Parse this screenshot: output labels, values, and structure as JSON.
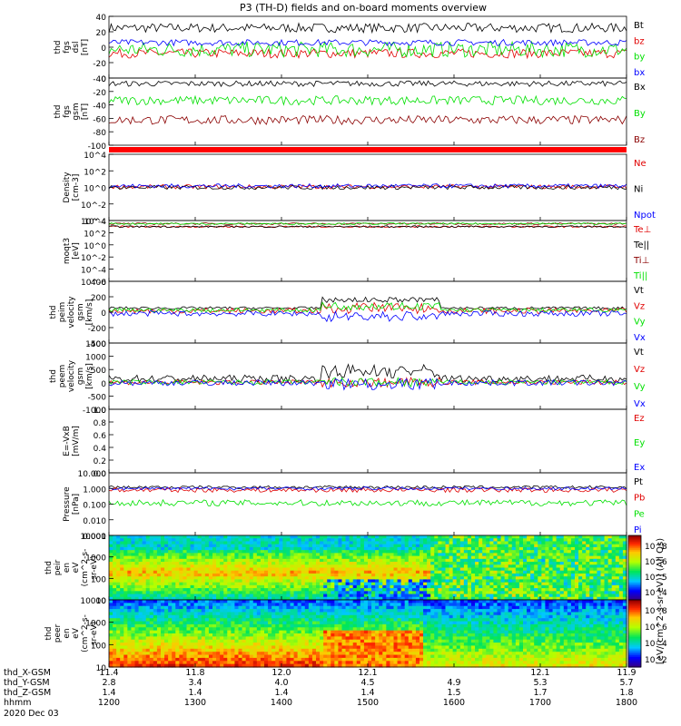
{
  "title": "P3 (TH-D) fields and on-board moments overview",
  "chart_data": {
    "type": "line",
    "title": "P3 (TH-D) fields and on-board moments overview",
    "panels": [
      {
        "id": "fgs_dsl",
        "ylabel": [
          "thd",
          "fgs",
          "dsl",
          "[nT]"
        ],
        "ylim": [
          -40,
          40
        ],
        "scale": "linear",
        "ticks": [
          "40",
          "20",
          "0",
          "-20",
          "-40"
        ],
        "series": [
          {
            "name": "Bt",
            "color": "#000000",
            "base": 25,
            "amp": 6
          },
          {
            "name": "bz",
            "color": "#e00000",
            "base": -8,
            "amp": 6
          },
          {
            "name": "by",
            "color": "#00e000",
            "base": -3,
            "amp": 10
          },
          {
            "name": "bx",
            "color": "#0000ff",
            "base": 6,
            "amp": 4
          }
        ]
      },
      {
        "id": "fgs_gsm",
        "ylabel": [
          "thd",
          "fgs",
          "gsm",
          "[nT]"
        ],
        "ylim": [
          -110,
          10
        ],
        "scale": "linear",
        "ticks": [
          "0",
          "-20",
          "-40",
          "-60",
          "-80",
          "-100"
        ],
        "series": [
          {
            "name": "Bx",
            "color": "#000000",
            "base": 0,
            "amp": 5
          },
          {
            "name": "By",
            "color": "#00e000",
            "base": -30,
            "amp": 8
          },
          {
            "name": "Bz",
            "color": "#8b0000",
            "base": -65,
            "amp": 8
          }
        ]
      },
      {
        "id": "density",
        "ylabel": [
          "Density",
          "[cm-3]"
        ],
        "ylim": [
          0.0001,
          10000
        ],
        "scale": "log",
        "ticks": [
          "10^4",
          "10^2",
          "10^0",
          "10^-2",
          "10^-4"
        ],
        "series": [
          {
            "name": "Ne",
            "color": "#e00000",
            "base": 1.2,
            "amp": 0.5
          },
          {
            "name": "Ni",
            "color": "#000000",
            "base": 1.0,
            "amp": 0.5
          },
          {
            "name": "Npot",
            "color": "#0000ff",
            "base": 1.5,
            "amp": 0.5
          }
        ]
      },
      {
        "id": "temp",
        "ylabel": [
          "moqt3",
          "[eV]"
        ],
        "ylim": [
          1e-06,
          10000
        ],
        "scale": "log",
        "ticks": [
          "10^4",
          "10^2",
          "10^0",
          "10^-2",
          "10^-4",
          "10^-6"
        ],
        "series": [
          {
            "name": "Te⊥",
            "color": "#e00000",
            "base": 1000,
            "amp": 0.3
          },
          {
            "name": "Te||",
            "color": "#000000",
            "base": 1000,
            "amp": 0.3
          },
          {
            "name": "Ti⊥",
            "color": "#8b0000",
            "base": 3000,
            "amp": 0.3
          },
          {
            "name": "Ti||",
            "color": "#00e000",
            "base": 3000,
            "amp": 0.3
          }
        ]
      },
      {
        "id": "peim_vel",
        "ylabel": [
          "thd",
          "peim",
          "velocity",
          "gsm",
          "[km/s]"
        ],
        "ylim": [
          -450,
          450
        ],
        "scale": "linear",
        "ticks": [
          "400",
          "200",
          "0",
          "-200",
          "-400"
        ],
        "series": [
          {
            "name": "Vt",
            "color": "#000000",
            "base": 60,
            "amp": 20
          },
          {
            "name": "Vz",
            "color": "#e00000",
            "base": 20,
            "amp": 40
          },
          {
            "name": "Vy",
            "color": "#00e000",
            "base": 30,
            "amp": 30
          },
          {
            "name": "Vx",
            "color": "#0000ff",
            "base": -20,
            "amp": 40
          }
        ]
      },
      {
        "id": "peem_vel",
        "ylabel": [
          "thd",
          "peem",
          "velocity",
          "gsm",
          "[km/s]"
        ],
        "ylim": [
          -1100,
          1600
        ],
        "scale": "linear",
        "ticks": [
          "1500",
          "1000",
          "500",
          "0",
          "-500",
          "-1000"
        ],
        "series": [
          {
            "name": "Vt",
            "color": "#000000",
            "base": 150,
            "amp": 150
          },
          {
            "name": "Vz",
            "color": "#e00000",
            "base": 0,
            "amp": 100
          },
          {
            "name": "Vy",
            "color": "#00e000",
            "base": 0,
            "amp": 100
          },
          {
            "name": "Vx",
            "color": "#0000ff",
            "base": -20,
            "amp": 120
          }
        ]
      },
      {
        "id": "efield",
        "ylabel": [
          "E=-VxB",
          "[mV/m]"
        ],
        "ylim": [
          0,
          1
        ],
        "scale": "linear",
        "ticks": [
          "1.0",
          "0.8",
          "0.6",
          "0.4",
          "0.2",
          "0.0"
        ],
        "series": [
          {
            "name": "Ez",
            "color": "#e00000"
          },
          {
            "name": "Ey",
            "color": "#00e000"
          },
          {
            "name": "Ex",
            "color": "#0000ff"
          }
        ]
      },
      {
        "id": "pressure",
        "ylabel": [
          "Pressure",
          "[nPa]"
        ],
        "ylim": [
          0.001,
          10
        ],
        "scale": "log",
        "ticks": [
          "10.000",
          "1.000",
          "0.100",
          "0.010",
          "0.001"
        ],
        "series": [
          {
            "name": "Pt",
            "color": "#000000",
            "base": 1.2,
            "amp": 0.2
          },
          {
            "name": "Pb",
            "color": "#e00000",
            "base": 0.8,
            "amp": 0.3
          },
          {
            "name": "Pe",
            "color": "#00e000",
            "base": 0.12,
            "amp": 0.4
          },
          {
            "name": "Pi",
            "color": "#0000ff",
            "base": 1.0,
            "amp": 0.2
          }
        ]
      },
      {
        "id": "peir_spec",
        "type": "heatmap",
        "ylabel": [
          "thd",
          "peir",
          "en",
          "eV",
          "(cm^2-s-",
          "sr-eV)"
        ],
        "ylim": [
          5,
          25000
        ],
        "scale": "log",
        "ticks": [
          "10000",
          "1000",
          "100",
          "10"
        ],
        "colorbar_ticks": [
          "10^8",
          "10^6",
          "10^5",
          "10^4"
        ]
      },
      {
        "id": "peer_spec",
        "type": "heatmap",
        "ylabel": [
          "thd",
          "peer",
          "en",
          "eV",
          "(cm^2-s-",
          "sr-eV)"
        ],
        "ylim": [
          5,
          25000
        ],
        "scale": "log",
        "ticks": [
          "10000",
          "1000",
          "100",
          "10"
        ],
        "colorbar_ticks": [
          "10^8",
          "10^6",
          "10^4",
          "10^2"
        ]
      }
    ],
    "colorbar_label": "[eV/(cm^2-s-sr-eV)] (All Qs)",
    "ephemeris": {
      "rows": [
        {
          "label": "thd_X-GSM",
          "values": [
            "11.4",
            "11.8",
            "12.0",
            "12.1",
            "12.1",
            "11.9"
          ]
        },
        {
          "label": "thd_Y-GSM",
          "values": [
            "2.8",
            "3.4",
            "4.0",
            "4.5",
            "4.9",
            "5.3",
            "5.7"
          ]
        },
        {
          "label": "thd_Z-GSM",
          "values": [
            "1.4",
            "1.4",
            "1.4",
            "1.4",
            "1.5",
            "1.7",
            "1.8"
          ]
        },
        {
          "label": "hhmm",
          "values": [
            "1200",
            "1300",
            "1400",
            "1500",
            "1600",
            "1700",
            "1800"
          ]
        }
      ],
      "x_row_positions": [
        0,
        1,
        2,
        3,
        5,
        6
      ],
      "date": "2020 Dec 03"
    },
    "x_hhmm": [
      "1200",
      "1300",
      "1400",
      "1500",
      "1600",
      "1700",
      "1800"
    ]
  }
}
